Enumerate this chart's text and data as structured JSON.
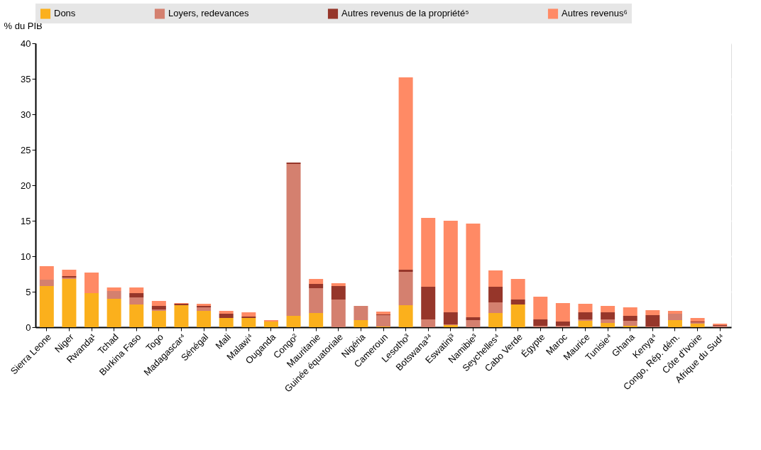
{
  "chart_data": {
    "type": "bar",
    "stacked": true,
    "ylabel": "% du PIB",
    "ylim": [
      0,
      40
    ],
    "yticks": [
      0,
      5,
      10,
      15,
      20,
      25,
      30,
      35,
      40
    ],
    "grid": true,
    "legend": "top",
    "categories": [
      "Sierra Leone",
      "Niger",
      "Rwanda¹",
      "Tchad",
      "Burkina Faso",
      "Togo",
      "Madagascar⁴",
      "Sénégal",
      "Mali",
      "Malawi⁴",
      "Ouganda",
      "Congo²",
      "Mauritanie",
      "Guinée équatoriale",
      "Nigéria",
      "Cameroun",
      "Lesotho³",
      "Botswana³⁴",
      "Eswatini³",
      "Namibie³",
      "Seychelles⁴",
      "Cabo Verde",
      "Égypte",
      "Maroc",
      "Maurice",
      "Tunisie⁴",
      "Ghana",
      "Kenya⁴",
      "Congo, Rép. dém.",
      "Côte d'Ivoire",
      "Afrique du Sud⁴"
    ],
    "series": [
      {
        "name": "Dons",
        "color": "#fbb01c",
        "values": [
          5.8,
          6.8,
          4.8,
          4.0,
          3.2,
          2.3,
          3.1,
          2.3,
          1.3,
          1.3,
          0.8,
          1.6,
          2.0,
          0,
          1.0,
          0.1,
          3.1,
          0,
          0.3,
          0,
          2.0,
          3.2,
          0,
          0,
          0.9,
          0.6,
          0.2,
          0,
          1.0,
          0.5,
          0
        ]
      },
      {
        "name": "Loyers, redevances",
        "color": "#d4806f",
        "values": [
          0.9,
          0.2,
          0,
          1.1,
          1.0,
          0.2,
          0,
          0.5,
          0,
          0,
          0,
          21.4,
          3.5,
          3.9,
          2.0,
          1.6,
          4.7,
          1.1,
          0.1,
          1.0,
          1.5,
          0,
          0.2,
          0.2,
          0.2,
          0.5,
          0.7,
          0.1,
          0.9,
          0.2,
          0.2
        ]
      },
      {
        "name": "Autres revenus de la propriété⁵",
        "color": "#96362a",
        "values": [
          0,
          0.2,
          0,
          0,
          0.6,
          0.5,
          0.2,
          0.2,
          0.6,
          0.2,
          0,
          0.2,
          0.6,
          1.9,
          0,
          0.1,
          0.3,
          4.6,
          1.7,
          0.4,
          2.2,
          0.7,
          0.9,
          0.6,
          1.0,
          1.0,
          0.7,
          1.6,
          0,
          0.1,
          0.1
        ]
      },
      {
        "name": "Autres revenus⁶",
        "color": "#ff8a65",
        "values": [
          1.9,
          0.9,
          2.9,
          0.5,
          0.8,
          0.7,
          0.1,
          0.3,
          0.4,
          0.6,
          0.2,
          0,
          0.7,
          0.4,
          0,
          0.4,
          27.1,
          9.7,
          12.9,
          13.2,
          2.3,
          2.9,
          3.2,
          2.6,
          1.2,
          0.9,
          1.2,
          0.7,
          0.4,
          0.5,
          0.2
        ]
      }
    ]
  }
}
